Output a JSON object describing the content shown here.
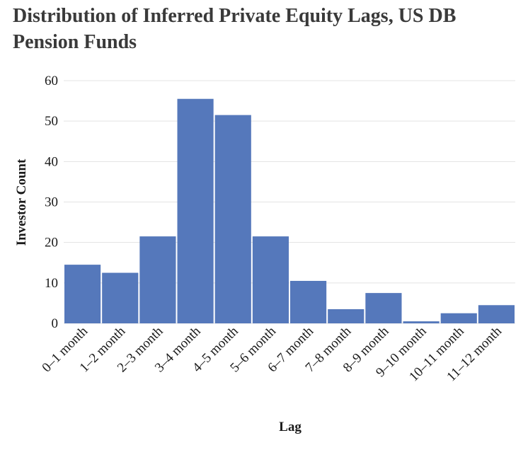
{
  "chart_data": {
    "type": "bar",
    "title": "Distribution of Inferred Private Equity Lags, US DB Pension Funds",
    "xlabel": "Lag",
    "ylabel": "Investor Count",
    "categories": [
      "0–1 month",
      "1–2 month",
      "2–3 month",
      "3–4 month",
      "4–5 month",
      "5–6 month",
      "6–7 month",
      "7–8 month",
      "8–9 month",
      "9–10 month",
      "10–11 month",
      "11–12 month"
    ],
    "values": [
      14.5,
      12.5,
      21.5,
      55.5,
      51.5,
      21.5,
      10.5,
      3.5,
      7.5,
      0.5,
      2.5,
      4.5
    ],
    "ylim": [
      0,
      60
    ],
    "yticks": [
      0,
      10,
      20,
      30,
      40,
      50,
      60
    ],
    "grid": true,
    "colors": {
      "bar": "#5578bb",
      "grid": "#e3e3e3"
    }
  }
}
